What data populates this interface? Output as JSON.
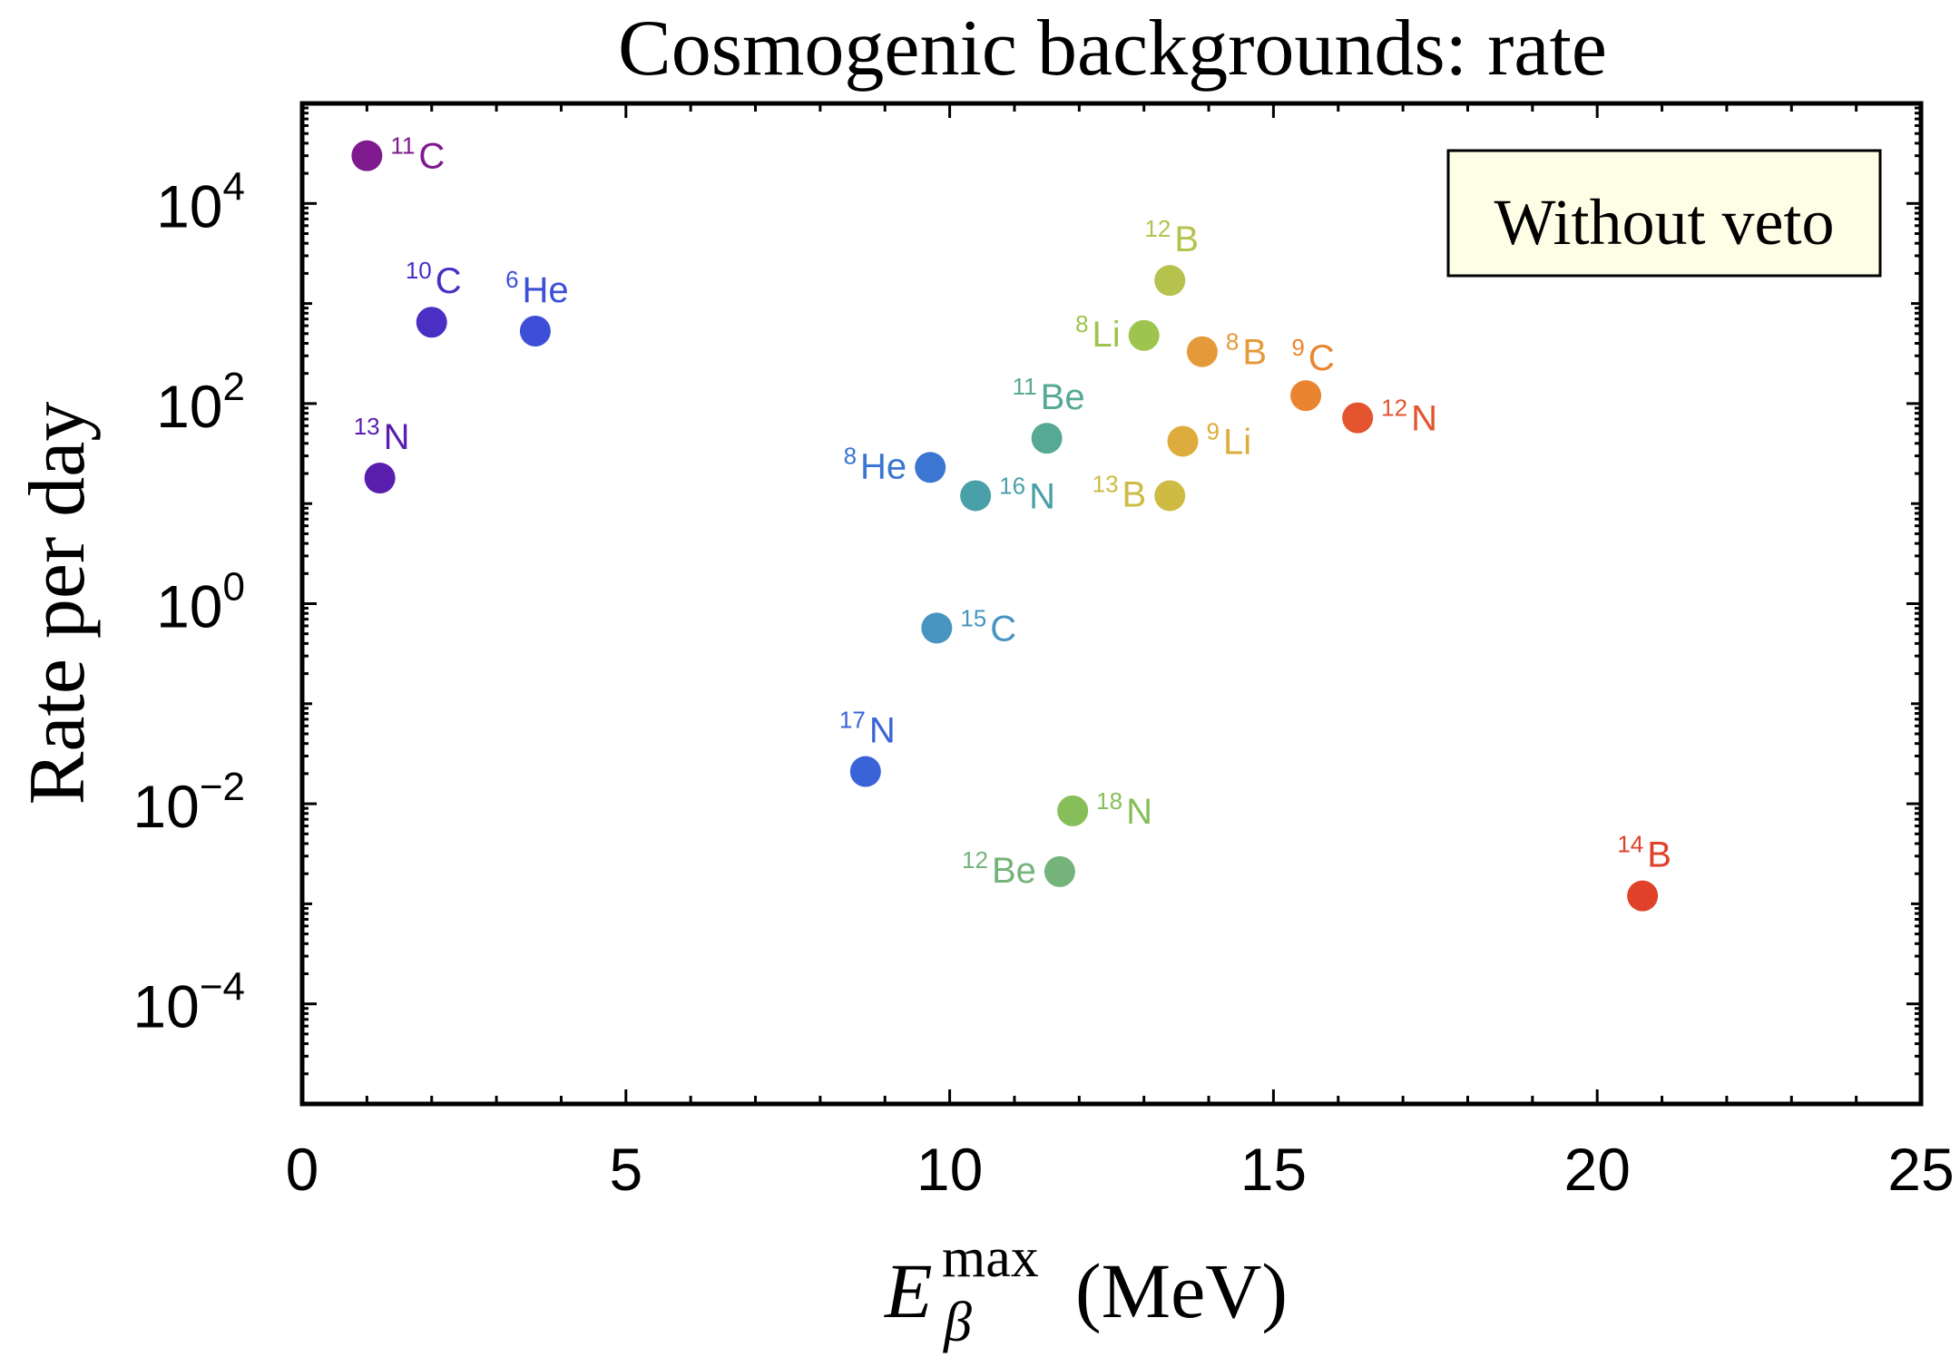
{
  "chart_data": {
    "type": "scatter",
    "title": "Cosmogenic backgrounds: rate",
    "xlabel": {
      "symbol": "E",
      "subscript": "β",
      "superscript": "max",
      "unit": "(MeV)"
    },
    "ylabel": "Rate per day",
    "y_scale": "log10",
    "xlim": [
      0,
      25
    ],
    "ylim_log10": [
      -5,
      5
    ],
    "x_ticks": [
      0,
      5,
      10,
      15,
      20,
      25
    ],
    "y_tick_exponents": [
      -4,
      -2,
      0,
      2,
      4
    ],
    "y_tick_base": "10",
    "legend_box": "Without veto",
    "legend_placement": "top-right",
    "points": [
      {
        "mass": "11",
        "element": "C",
        "x": 1.0,
        "y": 30000,
        "color": "#7e1a8e",
        "label_pos": "right"
      },
      {
        "mass": "10",
        "element": "C",
        "x": 2.0,
        "y": 650,
        "color": "#4a2fc4",
        "label_pos": "above"
      },
      {
        "mass": "6",
        "element": "He",
        "x": 3.6,
        "y": 530,
        "color": "#3d4fd6",
        "label_pos": "above"
      },
      {
        "mass": "13",
        "element": "N",
        "x": 1.2,
        "y": 18,
        "color": "#5a1eae",
        "label_pos": "above"
      },
      {
        "mass": "8",
        "element": "He",
        "x": 9.7,
        "y": 23,
        "color": "#3b76d2",
        "label_pos": "left"
      },
      {
        "mass": "16",
        "element": "N",
        "x": 10.4,
        "y": 12,
        "color": "#4aa0a8",
        "label_pos": "right"
      },
      {
        "mass": "11",
        "element": "Be",
        "x": 11.5,
        "y": 45,
        "color": "#56a993",
        "label_pos": "above"
      },
      {
        "mass": "12",
        "element": "B",
        "x": 13.4,
        "y": 1700,
        "color": "#b6c24e",
        "label_pos": "above"
      },
      {
        "mass": "8",
        "element": "Li",
        "x": 13.0,
        "y": 480,
        "color": "#9cc44e",
        "label_pos": "left"
      },
      {
        "mass": "8",
        "element": "B",
        "x": 13.9,
        "y": 330,
        "color": "#e59a3a",
        "label_pos": "right"
      },
      {
        "mass": "9",
        "element": "C",
        "x": 15.5,
        "y": 120,
        "color": "#e98531",
        "label_pos": "right-up"
      },
      {
        "mass": "12",
        "element": "N",
        "x": 16.3,
        "y": 72,
        "color": "#e4542e",
        "label_pos": "right"
      },
      {
        "mass": "9",
        "element": "Li",
        "x": 13.6,
        "y": 42,
        "color": "#deac3c",
        "label_pos": "right"
      },
      {
        "mass": "13",
        "element": "B",
        "x": 13.4,
        "y": 12,
        "color": "#cdbb44",
        "label_pos": "left"
      },
      {
        "mass": "15",
        "element": "C",
        "x": 9.8,
        "y": 0.57,
        "color": "#4795c0",
        "label_pos": "right"
      },
      {
        "mass": "17",
        "element": "N",
        "x": 8.7,
        "y": 0.021,
        "color": "#3a63d8",
        "label_pos": "above"
      },
      {
        "mass": "18",
        "element": "N",
        "x": 11.9,
        "y": 0.0085,
        "color": "#86bf59",
        "label_pos": "right"
      },
      {
        "mass": "12",
        "element": "Be",
        "x": 11.7,
        "y": 0.0021,
        "color": "#74b37a",
        "label_pos": "left"
      },
      {
        "mass": "14",
        "element": "B",
        "x": 20.7,
        "y": 0.0012,
        "color": "#df4228",
        "label_pos": "above"
      }
    ]
  }
}
